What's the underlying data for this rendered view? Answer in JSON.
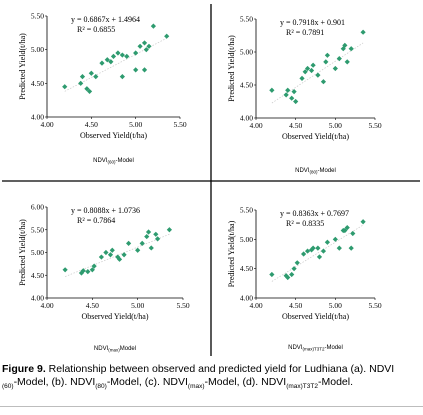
{
  "colors": {
    "marker": "#2e9b6f",
    "trend": "#c8c8c8",
    "divider": "#000000"
  },
  "caption": {
    "figure_label": "Figure 9.",
    "p1": " Relationship between observed and predicted yield for Ludhiana (a). NDVI",
    "s1": "(60)",
    "p2": "-Model, (b). NDVI",
    "s2": "(80)",
    "p3": "-Model, (c). NDVI",
    "s3": "(max)",
    "p4": "-Model, (d). NDVI",
    "s4": "(max)T3T2",
    "p5": "-Model."
  },
  "chart_data": [
    {
      "type": "scatter",
      "xlabel": "Observed Yield(t/ha)",
      "ylabel": "Predicted Yield(t/ha)",
      "xlim": [
        4.0,
        5.5
      ],
      "ylim": [
        4.0,
        5.5
      ],
      "xticks": [
        "4.00",
        "4.50",
        "5.00",
        "5.50"
      ],
      "yticks": [
        "4.00",
        "4.50",
        "5.00",
        "5.50"
      ],
      "equation": "y = 0.6867x + 1.4964",
      "r2": "R² = 0.6855",
      "trend": {
        "slope": 0.6867,
        "intercept": 1.4964
      },
      "model_label": {
        "base": "NDVI",
        "sub": "(60)",
        "suffix": "-Model"
      },
      "points": [
        [
          4.2,
          4.45
        ],
        [
          4.38,
          4.5
        ],
        [
          4.4,
          4.6
        ],
        [
          4.45,
          4.42
        ],
        [
          4.48,
          4.38
        ],
        [
          4.5,
          4.65
        ],
        [
          4.55,
          4.6
        ],
        [
          4.62,
          4.8
        ],
        [
          4.68,
          4.85
        ],
        [
          4.72,
          4.82
        ],
        [
          4.75,
          4.9
        ],
        [
          4.8,
          4.95
        ],
        [
          4.85,
          4.92
        ],
        [
          4.85,
          4.6
        ],
        [
          4.9,
          4.9
        ],
        [
          5.0,
          4.7
        ],
        [
          5.0,
          4.95
        ],
        [
          5.05,
          5.05
        ],
        [
          5.1,
          5.1
        ],
        [
          5.1,
          4.7
        ],
        [
          5.12,
          5.0
        ],
        [
          5.15,
          5.05
        ],
        [
          5.2,
          5.35
        ],
        [
          5.35,
          5.2
        ]
      ]
    },
    {
      "type": "scatter",
      "xlabel": "Observed Yield(t/ha)",
      "ylabel": "Predicted Yield(t/ha)",
      "xlim": [
        4.0,
        5.5
      ],
      "ylim": [
        4.0,
        5.5
      ],
      "xticks": [
        "4.00",
        "4.50",
        "5.00",
        "5.50"
      ],
      "yticks": [
        "4.00",
        "4.50",
        "5.00",
        "5.50"
      ],
      "equation": "y = 0.7918x + 0.901",
      "r2": "R² = 0.7891",
      "trend": {
        "slope": 0.7918,
        "intercept": 0.901
      },
      "model_label": {
        "base": "NDVI",
        "sub": "(80)",
        "suffix": "-Model"
      },
      "points": [
        [
          4.2,
          4.42
        ],
        [
          4.38,
          4.35
        ],
        [
          4.4,
          4.42
        ],
        [
          4.45,
          4.3
        ],
        [
          4.48,
          4.4
        ],
        [
          4.5,
          4.25
        ],
        [
          4.58,
          4.6
        ],
        [
          4.62,
          4.7
        ],
        [
          4.65,
          4.75
        ],
        [
          4.7,
          4.72
        ],
        [
          4.72,
          4.8
        ],
        [
          4.78,
          4.65
        ],
        [
          4.85,
          4.55
        ],
        [
          4.88,
          4.85
        ],
        [
          4.9,
          4.95
        ],
        [
          5.0,
          4.75
        ],
        [
          5.05,
          4.9
        ],
        [
          5.1,
          5.05
        ],
        [
          5.12,
          5.1
        ],
        [
          5.15,
          4.85
        ],
        [
          5.2,
          5.05
        ],
        [
          5.35,
          5.3
        ]
      ]
    },
    {
      "type": "scatter",
      "xlabel": "Observed Yield(t/ha)",
      "ylabel": "Predicted Yield(t/ha)",
      "xlim": [
        4.0,
        5.5
      ],
      "ylim": [
        4.0,
        6.0
      ],
      "xticks": [
        "4.00",
        "4.50",
        "5.00",
        "5.50"
      ],
      "yticks": [
        "4.00",
        "4.50",
        "5.00",
        "5.50",
        "6.00"
      ],
      "equation": "y = 0.8088x + 1.0736",
      "r2": "R² = 0.7864",
      "trend": {
        "slope": 0.8088,
        "intercept": 1.0736
      },
      "model_label": {
        "base": "NDVI",
        "sub": "(max)",
        "suffix": "Model"
      },
      "points": [
        [
          4.2,
          4.62
        ],
        [
          4.38,
          4.55
        ],
        [
          4.4,
          4.6
        ],
        [
          4.45,
          4.58
        ],
        [
          4.5,
          4.62
        ],
        [
          4.52,
          4.7
        ],
        [
          4.6,
          4.9
        ],
        [
          4.65,
          5.0
        ],
        [
          4.7,
          4.95
        ],
        [
          4.72,
          5.05
        ],
        [
          4.78,
          4.9
        ],
        [
          4.8,
          4.85
        ],
        [
          4.85,
          4.95
        ],
        [
          4.9,
          5.2
        ],
        [
          5.0,
          5.05
        ],
        [
          5.05,
          5.2
        ],
        [
          5.1,
          5.35
        ],
        [
          5.12,
          5.45
        ],
        [
          5.15,
          5.1
        ],
        [
          5.2,
          5.4
        ],
        [
          5.22,
          5.3
        ],
        [
          5.35,
          5.5
        ]
      ]
    },
    {
      "type": "scatter",
      "xlabel": "Observed Yield(t/ha)",
      "ylabel": "Predicted Yield(t/ha)",
      "xlim": [
        4.0,
        5.5
      ],
      "ylim": [
        4.0,
        5.5
      ],
      "xticks": [
        "4.00",
        "4.50",
        "5.00",
        "5.50"
      ],
      "yticks": [
        "4.00",
        "4.50",
        "5.00",
        "5.50"
      ],
      "equation": "y = 0.8363x + 0.7697",
      "r2": "R² = 0.8335",
      "trend": {
        "slope": 0.8363,
        "intercept": 0.7697
      },
      "model_label": {
        "base": "NDVI",
        "sub": "(max)T3T2",
        "suffix": "-Model"
      },
      "points": [
        [
          4.2,
          4.4
        ],
        [
          4.38,
          4.38
        ],
        [
          4.4,
          4.35
        ],
        [
          4.45,
          4.4
        ],
        [
          4.48,
          4.5
        ],
        [
          4.52,
          4.6
        ],
        [
          4.6,
          4.75
        ],
        [
          4.65,
          4.8
        ],
        [
          4.7,
          4.82
        ],
        [
          4.72,
          4.85
        ],
        [
          4.78,
          4.85
        ],
        [
          4.8,
          4.7
        ],
        [
          4.85,
          4.8
        ],
        [
          4.9,
          4.95
        ],
        [
          5.0,
          5.0
        ],
        [
          5.05,
          4.85
        ],
        [
          5.1,
          5.15
        ],
        [
          5.12,
          5.15
        ],
        [
          5.15,
          5.2
        ],
        [
          5.2,
          4.85
        ],
        [
          5.22,
          5.1
        ],
        [
          5.35,
          5.3
        ]
      ]
    }
  ]
}
